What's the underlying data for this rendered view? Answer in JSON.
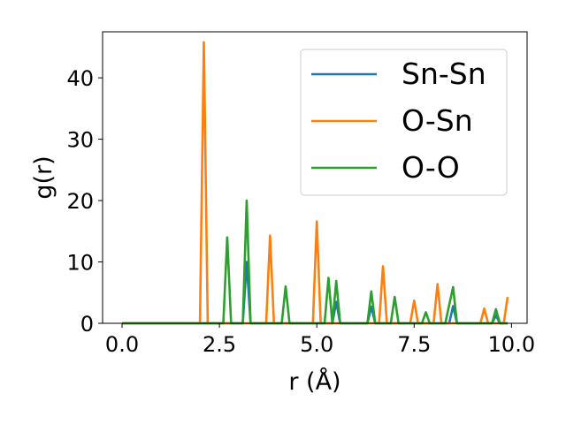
{
  "chart_data": {
    "type": "line",
    "xlabel": "r (Å)",
    "ylabel": "g(r)",
    "xlim": [
      -0.5,
      10.4
    ],
    "ylim": [
      0,
      47.5
    ],
    "xticks": [
      0.0,
      2.5,
      5.0,
      7.5,
      10.0
    ],
    "xtick_labels": [
      "0.0",
      "2.5",
      "5.0",
      "7.5",
      "10.0"
    ],
    "yticks": [
      0,
      10,
      20,
      30,
      40
    ],
    "ytick_labels": [
      "0",
      "10",
      "20",
      "30",
      "40"
    ],
    "grid": false,
    "legend_position": "upper-right",
    "series": [
      {
        "name": "Sn-Sn",
        "color": "#1f77b4",
        "x": [
          0.0,
          3.0,
          3.1,
          3.2,
          3.3,
          5.4,
          5.5,
          5.6,
          6.3,
          6.4,
          6.5,
          8.4,
          8.5,
          8.6,
          9.5,
          9.6,
          9.7,
          9.9
        ],
        "y": [
          0,
          0,
          0,
          10.0,
          0,
          0,
          3.5,
          0,
          0,
          2.7,
          0,
          0,
          2.8,
          0,
          0,
          1.3,
          0,
          0
        ]
      },
      {
        "name": "O-Sn",
        "color": "#ff7f0e",
        "x": [
          0.0,
          2.0,
          2.1,
          2.2,
          3.7,
          3.8,
          3.9,
          4.9,
          5.0,
          5.1,
          6.6,
          6.7,
          6.8,
          7.4,
          7.5,
          7.6,
          8.0,
          8.1,
          8.2,
          9.2,
          9.3,
          9.4,
          9.8,
          9.9
        ],
        "y": [
          0,
          0,
          45.8,
          0,
          0,
          14.3,
          0,
          0,
          16.6,
          0,
          0,
          9.3,
          0,
          0,
          3.7,
          0,
          0,
          6.4,
          0,
          0,
          2.4,
          0,
          0,
          4.3
        ]
      },
      {
        "name": "O-O",
        "color": "#2ca02c",
        "x": [
          0.0,
          2.6,
          2.7,
          2.8,
          3.1,
          3.2,
          3.3,
          4.1,
          4.2,
          4.3,
          5.2,
          5.3,
          5.4,
          5.5,
          5.6,
          6.3,
          6.4,
          6.5,
          6.9,
          7.0,
          7.1,
          7.7,
          7.8,
          7.9,
          8.3,
          8.4,
          8.5,
          8.6,
          9.5,
          9.6,
          9.7,
          9.9
        ],
        "y": [
          0,
          0,
          14.0,
          0,
          0,
          20.0,
          0,
          0,
          6.0,
          0,
          0,
          7.4,
          0,
          6.9,
          0,
          0,
          5.2,
          0,
          0,
          4.3,
          0,
          0,
          1.8,
          0,
          0,
          3.0,
          5.9,
          0,
          0,
          2.3,
          0,
          0
        ]
      }
    ]
  }
}
